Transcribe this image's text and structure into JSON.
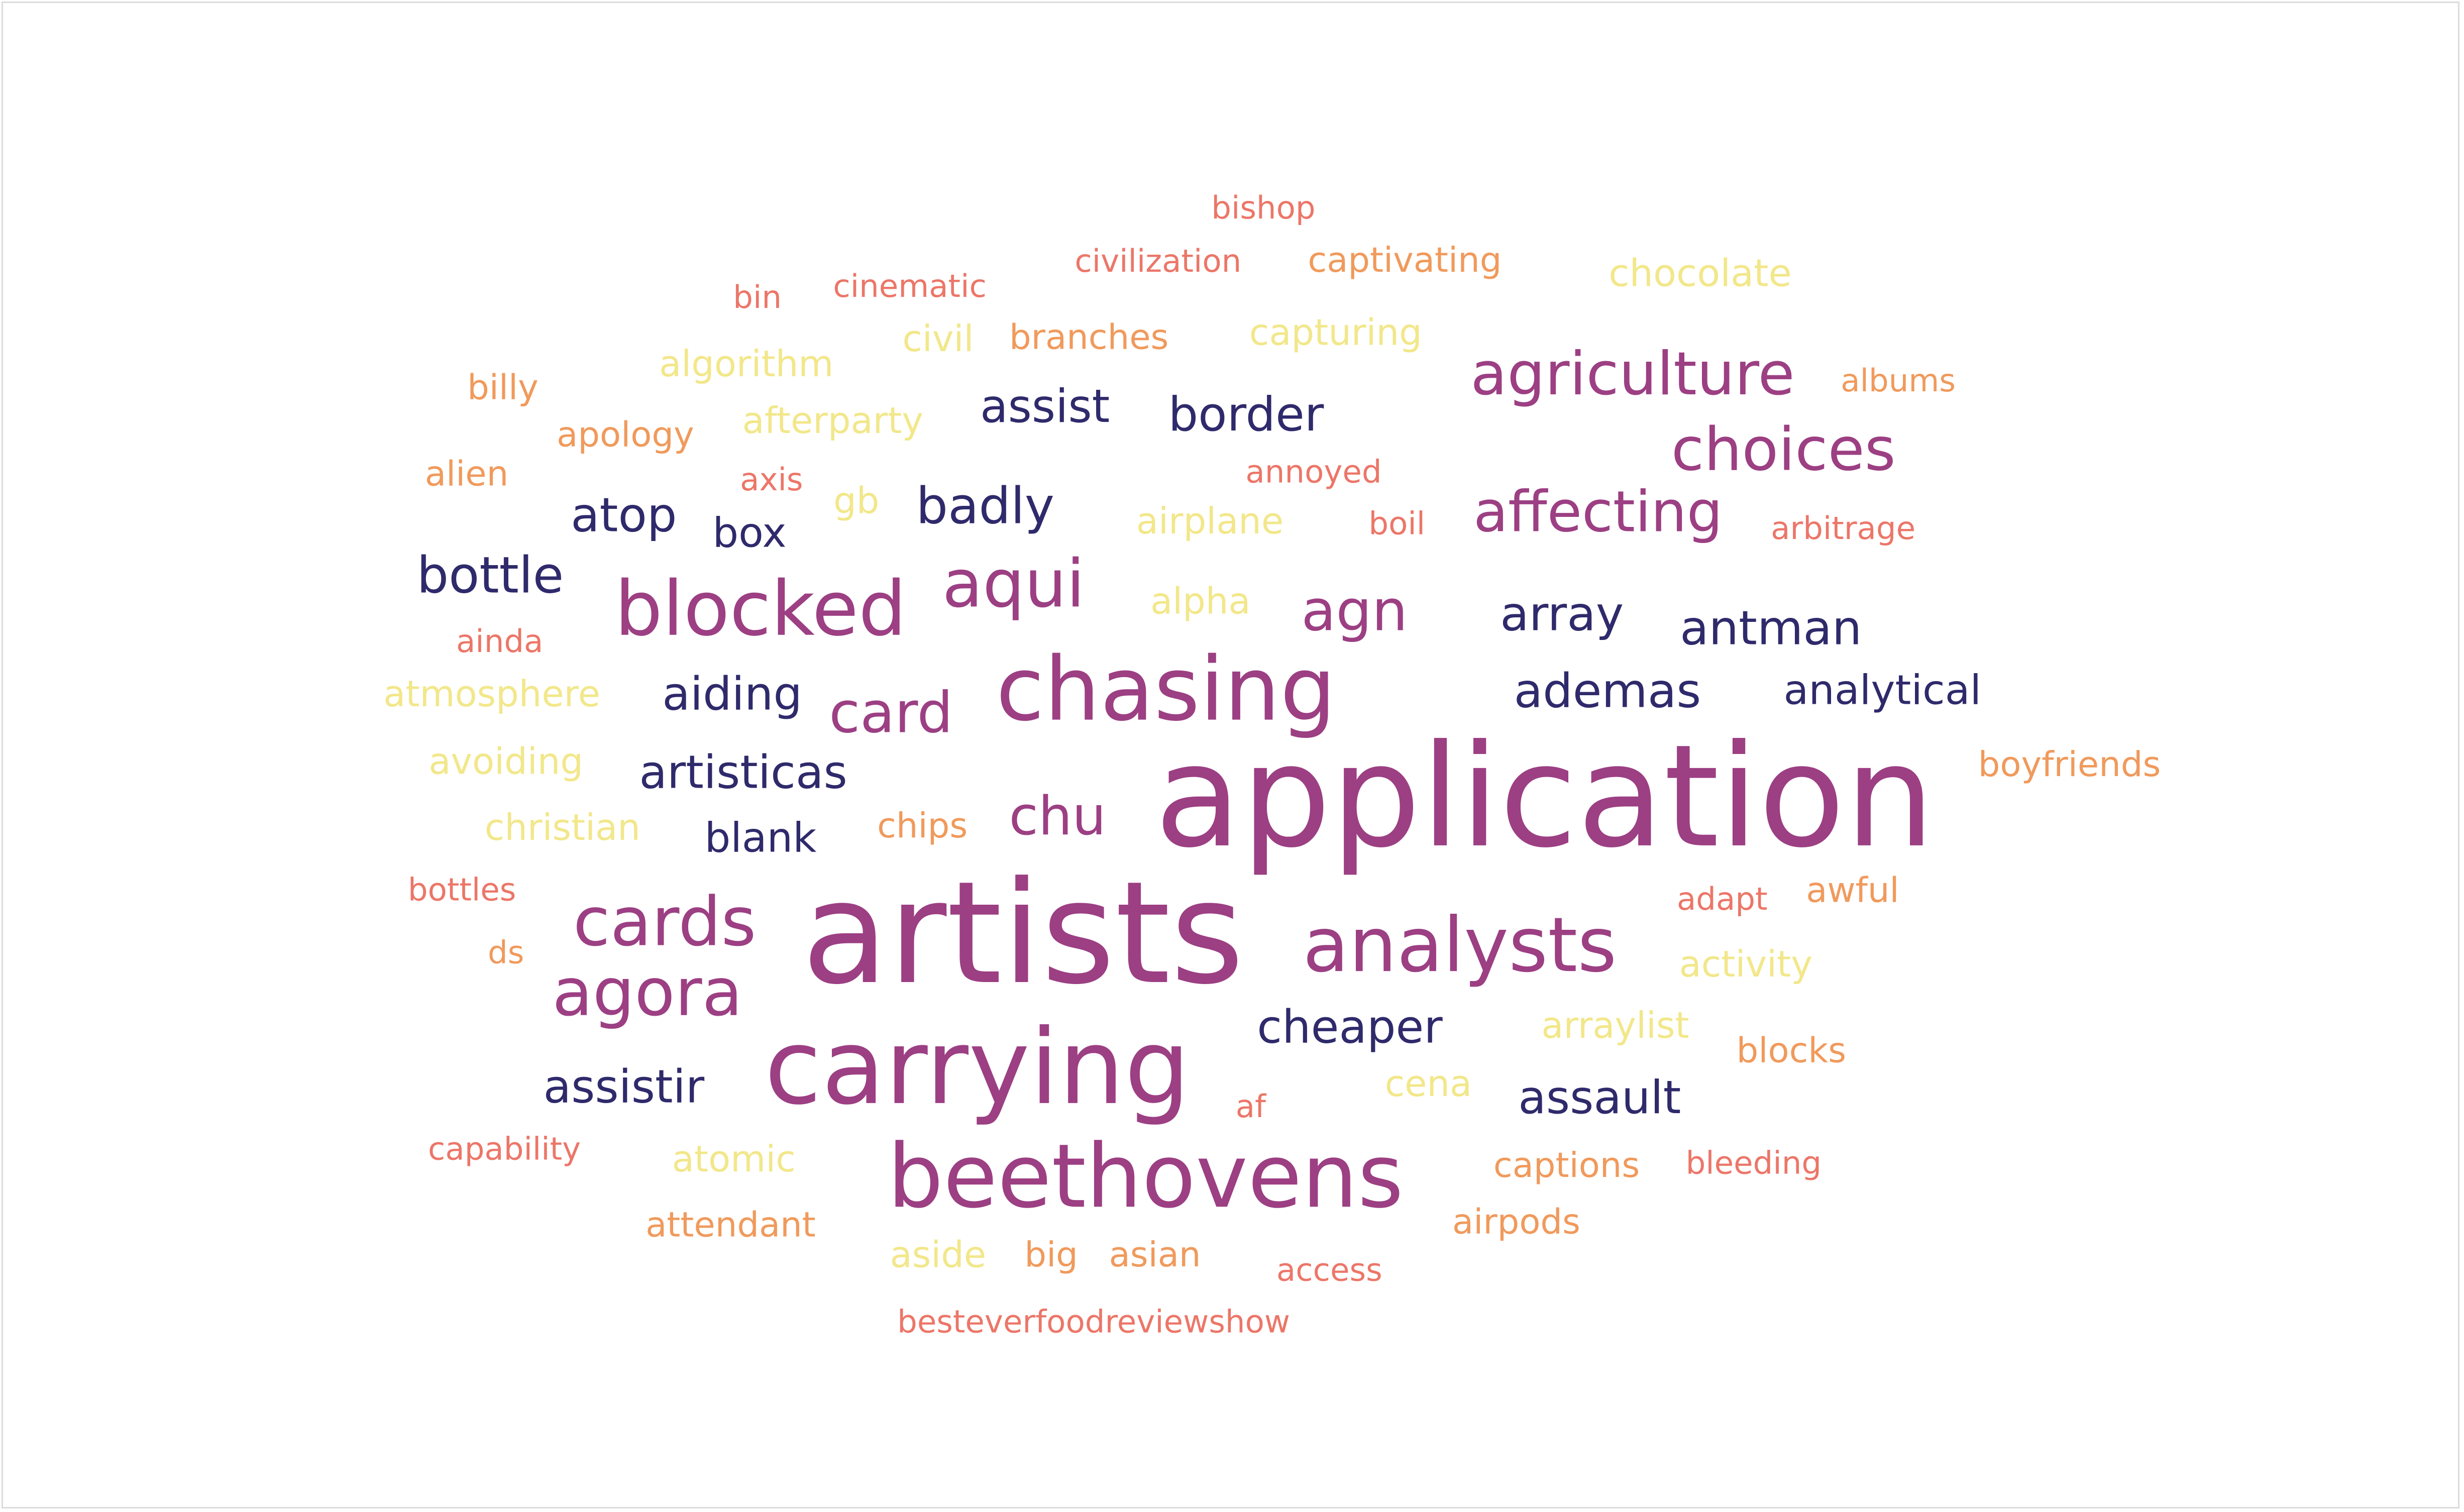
{
  "palette": {
    "navy": "#2f2a6b",
    "purple": "#9c3f83",
    "coral": "#ec7668",
    "orange": "#f09a5c",
    "yellow": "#f2e78a"
  },
  "words": [
    {
      "text": "application",
      "color": "purple",
      "weight": 1.0
    },
    {
      "text": "artists",
      "color": "purple",
      "weight": 1.0
    },
    {
      "text": "carrying",
      "color": "purple",
      "weight": 0.73
    },
    {
      "text": "chasing",
      "color": "purple",
      "weight": 0.6
    },
    {
      "text": "beethovens",
      "color": "purple",
      "weight": 0.6
    },
    {
      "text": "analysts",
      "color": "purple",
      "weight": 0.52
    },
    {
      "text": "blocked",
      "color": "purple",
      "weight": 0.52
    },
    {
      "text": "cards",
      "color": "purple",
      "weight": 0.48
    },
    {
      "text": "agora",
      "color": "purple",
      "weight": 0.46
    },
    {
      "text": "aqui",
      "color": "purple",
      "weight": 0.46
    },
    {
      "text": "agriculture",
      "color": "purple",
      "weight": 0.43
    },
    {
      "text": "choices",
      "color": "purple",
      "weight": 0.43
    },
    {
      "text": "affecting",
      "color": "purple",
      "weight": 0.4
    },
    {
      "text": "card",
      "color": "purple",
      "weight": 0.4
    },
    {
      "text": "agn",
      "color": "purple",
      "weight": 0.4
    },
    {
      "text": "chu",
      "color": "purple",
      "weight": 0.37
    },
    {
      "text": "badly",
      "color": "navy",
      "weight": 0.35
    },
    {
      "text": "bottle",
      "color": "navy",
      "weight": 0.35
    },
    {
      "text": "atop",
      "color": "navy",
      "weight": 0.33
    },
    {
      "text": "border",
      "color": "navy",
      "weight": 0.33
    },
    {
      "text": "assist",
      "color": "navy",
      "weight": 0.32
    },
    {
      "text": "array",
      "color": "navy",
      "weight": 0.33
    },
    {
      "text": "antman",
      "color": "navy",
      "weight": 0.33
    },
    {
      "text": "ademas",
      "color": "navy",
      "weight": 0.33
    },
    {
      "text": "aiding",
      "color": "navy",
      "weight": 0.32
    },
    {
      "text": "artisticas",
      "color": "navy",
      "weight": 0.32
    },
    {
      "text": "cheaper",
      "color": "navy",
      "weight": 0.32
    },
    {
      "text": "assistir",
      "color": "navy",
      "weight": 0.32
    },
    {
      "text": "assault",
      "color": "navy",
      "weight": 0.32
    },
    {
      "text": "box",
      "color": "navy",
      "weight": 0.28
    },
    {
      "text": "blank",
      "color": "navy",
      "weight": 0.28
    },
    {
      "text": "analytical",
      "color": "navy",
      "weight": 0.28
    },
    {
      "text": "chocolate",
      "color": "yellow",
      "weight": 0.26
    },
    {
      "text": "algorithm",
      "color": "yellow",
      "weight": 0.25
    },
    {
      "text": "civil",
      "color": "yellow",
      "weight": 0.25
    },
    {
      "text": "capturing",
      "color": "yellow",
      "weight": 0.25
    },
    {
      "text": "afterparty",
      "color": "yellow",
      "weight": 0.25
    },
    {
      "text": "gb",
      "color": "yellow",
      "weight": 0.25
    },
    {
      "text": "airplane",
      "color": "yellow",
      "weight": 0.25
    },
    {
      "text": "alpha",
      "color": "yellow",
      "weight": 0.25
    },
    {
      "text": "atmosphere",
      "color": "yellow",
      "weight": 0.25
    },
    {
      "text": "avoiding",
      "color": "yellow",
      "weight": 0.25
    },
    {
      "text": "christian",
      "color": "yellow",
      "weight": 0.25
    },
    {
      "text": "activity",
      "color": "yellow",
      "weight": 0.25
    },
    {
      "text": "arraylist",
      "color": "yellow",
      "weight": 0.25
    },
    {
      "text": "cena",
      "color": "yellow",
      "weight": 0.25
    },
    {
      "text": "atomic",
      "color": "yellow",
      "weight": 0.25
    },
    {
      "text": "aside",
      "color": "yellow",
      "weight": 0.25
    },
    {
      "text": "bishop",
      "color": "coral",
      "weight": 0.22
    },
    {
      "text": "civilization",
      "color": "coral",
      "weight": 0.22
    },
    {
      "text": "cinematic",
      "color": "coral",
      "weight": 0.22
    },
    {
      "text": "bin",
      "color": "coral",
      "weight": 0.22
    },
    {
      "text": "axis",
      "color": "coral",
      "weight": 0.22
    },
    {
      "text": "annoyed",
      "color": "coral",
      "weight": 0.22
    },
    {
      "text": "boil",
      "color": "coral",
      "weight": 0.22
    },
    {
      "text": "arbitrage",
      "color": "coral",
      "weight": 0.22
    },
    {
      "text": "ainda",
      "color": "coral",
      "weight": 0.22
    },
    {
      "text": "bottles",
      "color": "coral",
      "weight": 0.22
    },
    {
      "text": "adapt",
      "color": "coral",
      "weight": 0.22
    },
    {
      "text": "af",
      "color": "coral",
      "weight": 0.22
    },
    {
      "text": "capability",
      "color": "coral",
      "weight": 0.22
    },
    {
      "text": "bleeding",
      "color": "coral",
      "weight": 0.22
    },
    {
      "text": "access",
      "color": "coral",
      "weight": 0.22
    },
    {
      "text": "besteverfoodreviewshow",
      "color": "coral",
      "weight": 0.22
    },
    {
      "text": "captivating",
      "color": "orange",
      "weight": 0.24
    },
    {
      "text": "branches",
      "color": "orange",
      "weight": 0.24
    },
    {
      "text": "billy",
      "color": "orange",
      "weight": 0.24
    },
    {
      "text": "albums",
      "color": "orange",
      "weight": 0.22
    },
    {
      "text": "apology",
      "color": "orange",
      "weight": 0.24
    },
    {
      "text": "alien",
      "color": "orange",
      "weight": 0.24
    },
    {
      "text": "boyfriends",
      "color": "orange",
      "weight": 0.24
    },
    {
      "text": "chips",
      "color": "orange",
      "weight": 0.24
    },
    {
      "text": "awful",
      "color": "orange",
      "weight": 0.24
    },
    {
      "text": "ds",
      "color": "orange",
      "weight": 0.22
    },
    {
      "text": "blocks",
      "color": "orange",
      "weight": 0.24
    },
    {
      "text": "captions",
      "color": "orange",
      "weight": 0.24
    },
    {
      "text": "attendant",
      "color": "orange",
      "weight": 0.24
    },
    {
      "text": "airpods",
      "color": "orange",
      "weight": 0.24
    },
    {
      "text": "big",
      "color": "orange",
      "weight": 0.24
    },
    {
      "text": "asian",
      "color": "orange",
      "weight": 0.24
    }
  ]
}
